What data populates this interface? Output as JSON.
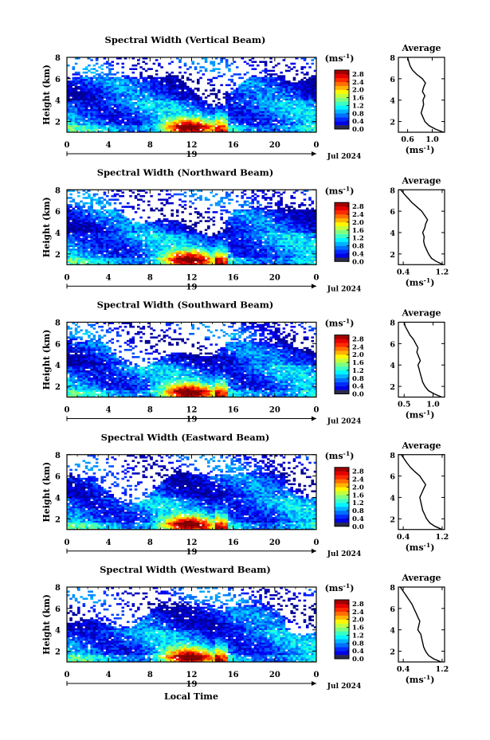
{
  "figure": {
    "xlabel": "Local Time",
    "date_label": "Jul 2024",
    "day_label": "19",
    "ylabel": "Height (km)",
    "cbar_unit": "(ms",
    "cbar_unit_exp": "-1",
    "cbar_unit_close": ")",
    "avg_title": "Average",
    "avg_xlabel": "(ms",
    "avg_xlabel_exp": "-1",
    "avg_xlabel_close": ")"
  },
  "chart_data": [
    {
      "type": "heatmap",
      "title": "Spectral Width (Vertical Beam)",
      "x_ticks": [
        "0",
        "4",
        "8",
        "12",
        "16",
        "20",
        "0"
      ],
      "xlim": [
        0,
        24
      ],
      "y_ticks": [
        "2",
        "4",
        "6",
        "8"
      ],
      "ylim": [
        1,
        8
      ],
      "colorbar_ticks": [
        "0.0",
        "0.4",
        "0.8",
        "1.2",
        "1.6",
        "2.0",
        "2.4",
        "2.8"
      ],
      "colorbar_range": [
        0.0,
        3.0
      ],
      "average_profile": {
        "x_ticks": [
          "0.6",
          "1.0"
        ],
        "xlim": [
          0.45,
          1.2
        ],
        "y_ticks": [
          "2",
          "4",
          "6",
          "8"
        ],
        "ylim": [
          1,
          8
        ],
        "height": [
          1.0,
          1.3,
          1.6,
          2.0,
          2.4,
          2.8,
          3.2,
          3.6,
          4.0,
          4.4,
          4.8,
          5.2,
          5.6,
          6.0,
          6.4,
          6.8,
          7.2,
          7.6,
          8.0
        ],
        "value": [
          1.18,
          1.05,
          0.95,
          0.88,
          0.85,
          0.82,
          0.84,
          0.86,
          0.85,
          0.88,
          0.84,
          0.86,
          0.89,
          0.84,
          0.75,
          0.68,
          0.64,
          0.62,
          0.6
        ]
      }
    },
    {
      "type": "heatmap",
      "title": "Spectral Width (Northward Beam)",
      "x_ticks": [
        "0",
        "4",
        "8",
        "12",
        "16",
        "20",
        "0"
      ],
      "xlim": [
        0,
        24
      ],
      "y_ticks": [
        "2",
        "4",
        "6",
        "8"
      ],
      "ylim": [
        1,
        8
      ],
      "colorbar_ticks": [
        "0.0",
        "0.4",
        "0.8",
        "1.2",
        "1.6",
        "2.0",
        "2.4",
        "2.8"
      ],
      "colorbar_range": [
        0.0,
        3.0
      ],
      "average_profile": {
        "x_ticks": [
          "0.4",
          "1.2"
        ],
        "xlim": [
          0.3,
          1.25
        ],
        "y_ticks": [
          "2",
          "4",
          "6",
          "8"
        ],
        "ylim": [
          1,
          8
        ],
        "height": [
          1.0,
          1.3,
          1.6,
          2.0,
          2.4,
          2.8,
          3.2,
          3.6,
          4.0,
          4.4,
          4.8,
          5.2,
          5.6,
          6.0,
          6.4,
          6.8,
          7.2,
          7.6,
          8.0
        ],
        "value": [
          1.22,
          1.08,
          0.98,
          0.92,
          0.88,
          0.84,
          0.82,
          0.83,
          0.8,
          0.84,
          0.86,
          0.9,
          0.84,
          0.78,
          0.68,
          0.58,
          0.5,
          0.42,
          0.35
        ]
      }
    },
    {
      "type": "heatmap",
      "title": "Spectral Width (Southward Beam)",
      "x_ticks": [
        "0",
        "4",
        "8",
        "12",
        "16",
        "20",
        "0"
      ],
      "xlim": [
        0,
        24
      ],
      "y_ticks": [
        "2",
        "4",
        "6",
        "8"
      ],
      "ylim": [
        1,
        8
      ],
      "colorbar_ticks": [
        "0.0",
        "0.4",
        "0.8",
        "1.2",
        "1.6",
        "2.0",
        "2.4",
        "2.8"
      ],
      "colorbar_range": [
        0.0,
        3.0
      ],
      "average_profile": {
        "x_ticks": [
          "0.5",
          "1.0"
        ],
        "xlim": [
          0.4,
          1.2
        ],
        "y_ticks": [
          "2",
          "4",
          "6",
          "8"
        ],
        "ylim": [
          1,
          8
        ],
        "height": [
          1.0,
          1.3,
          1.6,
          2.0,
          2.4,
          2.8,
          3.2,
          3.6,
          4.0,
          4.4,
          4.8,
          5.2,
          5.6,
          6.0,
          6.4,
          6.8,
          7.2,
          7.6,
          8.0
        ],
        "value": [
          1.15,
          1.02,
          0.92,
          0.86,
          0.82,
          0.8,
          0.78,
          0.76,
          0.74,
          0.78,
          0.75,
          0.72,
          0.74,
          0.7,
          0.66,
          0.6,
          0.56,
          0.52,
          0.5
        ]
      }
    },
    {
      "type": "heatmap",
      "title": "Spectral Width (Eastward Beam)",
      "x_ticks": [
        "0",
        "4",
        "8",
        "12",
        "16",
        "20",
        "0"
      ],
      "xlim": [
        0,
        24
      ],
      "y_ticks": [
        "2",
        "4",
        "6",
        "8"
      ],
      "ylim": [
        1,
        8
      ],
      "colorbar_ticks": [
        "0.0",
        "0.4",
        "0.8",
        "1.2",
        "1.6",
        "2.0",
        "2.4",
        "2.8"
      ],
      "colorbar_range": [
        0.0,
        3.0
      ],
      "average_profile": {
        "x_ticks": [
          "0.4",
          "1.2"
        ],
        "xlim": [
          0.3,
          1.25
        ],
        "y_ticks": [
          "2",
          "4",
          "6",
          "8"
        ],
        "ylim": [
          1,
          8
        ],
        "height": [
          1.0,
          1.3,
          1.6,
          2.0,
          2.4,
          2.8,
          3.2,
          3.6,
          4.0,
          4.4,
          4.8,
          5.2,
          5.6,
          6.0,
          6.4,
          6.8,
          7.2,
          7.6,
          8.0
        ],
        "value": [
          1.2,
          1.05,
          0.95,
          0.88,
          0.84,
          0.8,
          0.78,
          0.76,
          0.74,
          0.78,
          0.82,
          0.86,
          0.8,
          0.74,
          0.64,
          0.55,
          0.48,
          0.42,
          0.36
        ]
      }
    },
    {
      "type": "heatmap",
      "title": "Spectral Width (Westward Beam)",
      "x_ticks": [
        "0",
        "4",
        "8",
        "12",
        "16",
        "20",
        "0"
      ],
      "xlim": [
        0,
        24
      ],
      "y_ticks": [
        "2",
        "4",
        "6",
        "8"
      ],
      "ylim": [
        1,
        8
      ],
      "colorbar_ticks": [
        "0.0",
        "0.4",
        "0.8",
        "1.2",
        "1.6",
        "2.0",
        "2.4",
        "2.8"
      ],
      "colorbar_range": [
        0.0,
        3.0
      ],
      "average_profile": {
        "x_ticks": [
          "0.4",
          "1.2"
        ],
        "xlim": [
          0.3,
          1.25
        ],
        "y_ticks": [
          "2",
          "4",
          "6",
          "8"
        ],
        "ylim": [
          1,
          8
        ],
        "height": [
          1.0,
          1.3,
          1.6,
          2.0,
          2.4,
          2.8,
          3.2,
          3.6,
          4.0,
          4.4,
          4.8,
          5.2,
          5.6,
          6.0,
          6.4,
          6.8,
          7.2,
          7.6,
          8.0
        ],
        "value": [
          1.18,
          1.02,
          0.92,
          0.86,
          0.82,
          0.8,
          0.78,
          0.76,
          0.7,
          0.72,
          0.74,
          0.7,
          0.66,
          0.62,
          0.58,
          0.52,
          0.46,
          0.4,
          0.34
        ]
      }
    }
  ]
}
